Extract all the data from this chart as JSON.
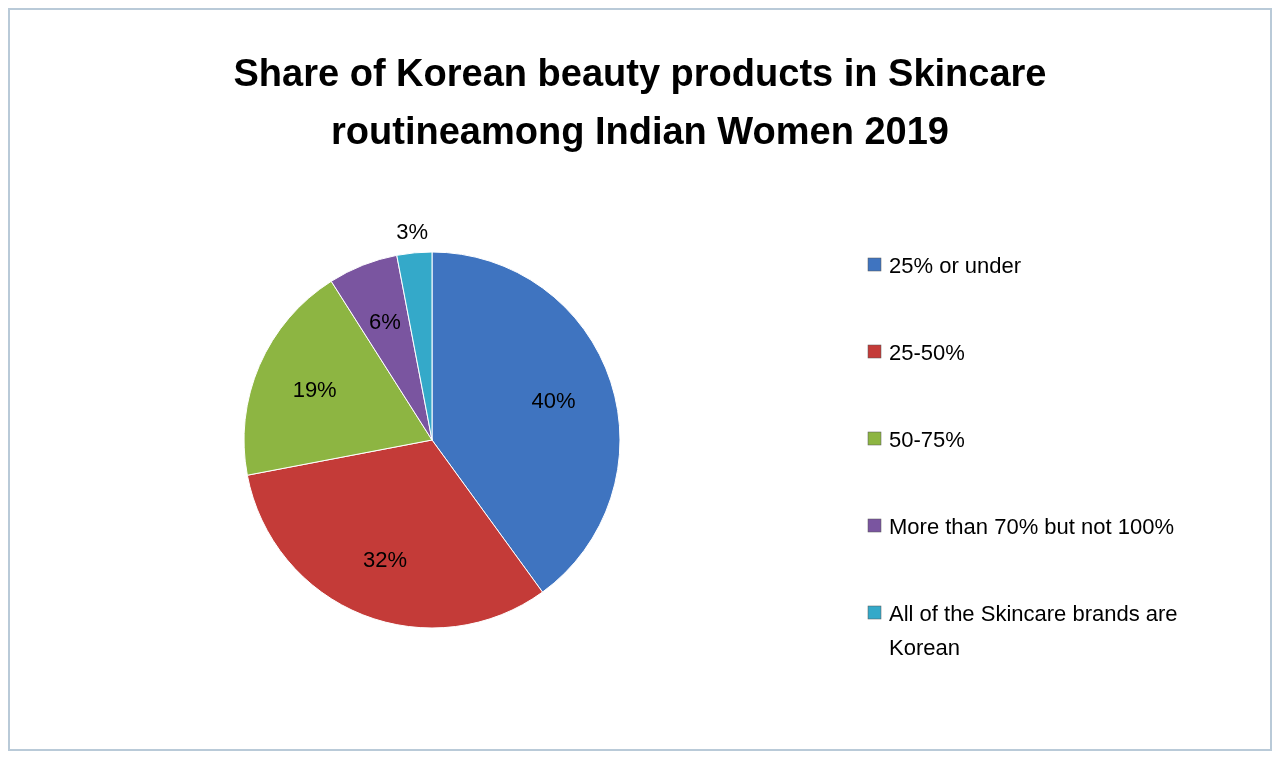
{
  "chart_data": {
    "type": "pie",
    "title": "Share of Korean beauty products in Skincare routineamong Indian Women 2019",
    "categories": [
      "25% or under",
      "25-50%",
      "50-75%",
      "More than 70% but not 100%",
      "All of the Skincare brands are Korean"
    ],
    "values": [
      40,
      32,
      19,
      6,
      3
    ],
    "value_labels": [
      "40%",
      "32%",
      "19%",
      "6%",
      "3%"
    ],
    "colors": [
      "#3f74c0",
      "#c43b38",
      "#8db542",
      "#7a55a0",
      "#34a9c9"
    ],
    "legend": "right"
  }
}
